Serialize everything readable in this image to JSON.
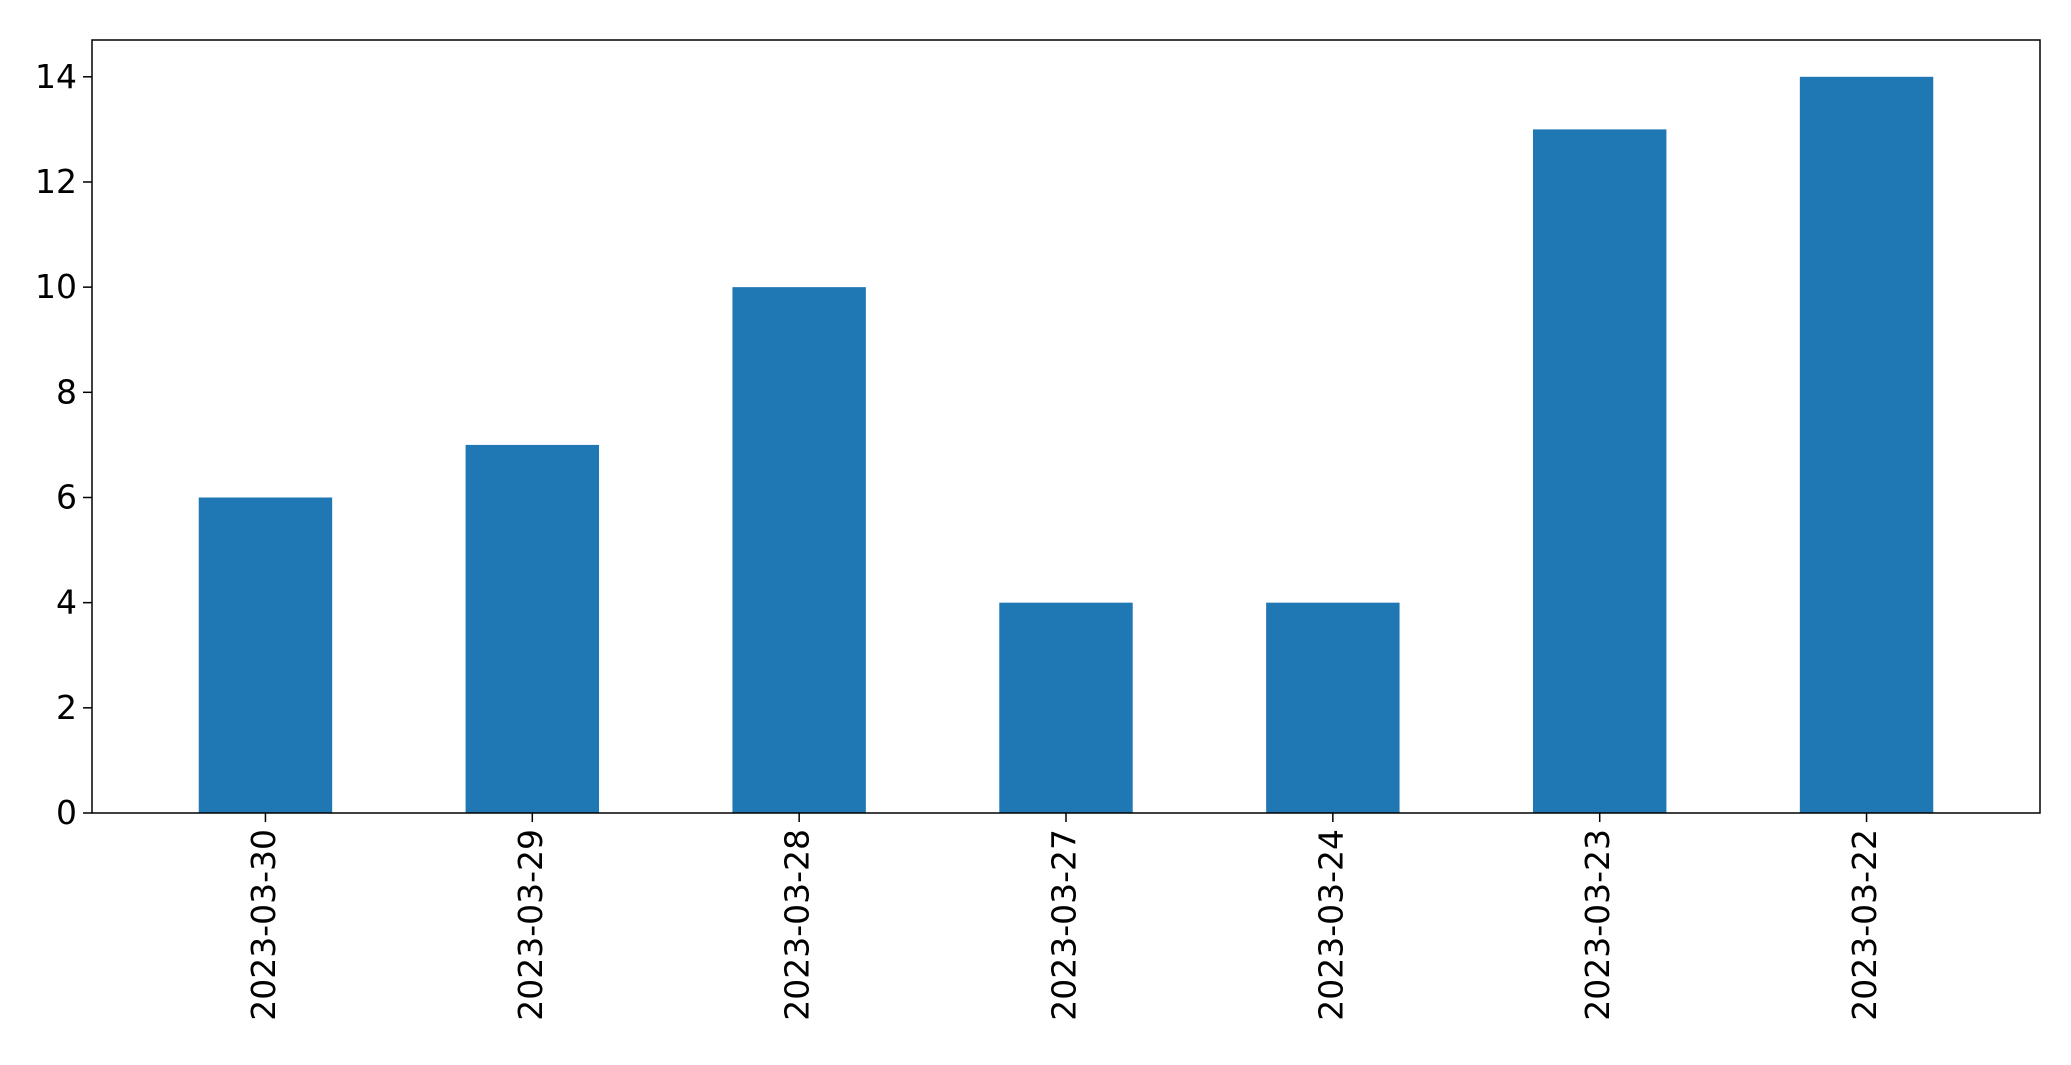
{
  "chart_data": {
    "type": "bar",
    "title": "",
    "xlabel": "",
    "ylabel": "",
    "categories": [
      "2023-03-30",
      "2023-03-29",
      "2023-03-28",
      "2023-03-27",
      "2023-03-24",
      "2023-03-23",
      "2023-03-22"
    ],
    "values": [
      6,
      7,
      10,
      4,
      4,
      13,
      14
    ],
    "ylim": [
      0,
      14.7
    ],
    "yticks": [
      0,
      2,
      4,
      6,
      8,
      10,
      12,
      14
    ],
    "grid": false,
    "legend": "none",
    "bar_color": "#1f77b4",
    "axis_color": "#000000"
  }
}
